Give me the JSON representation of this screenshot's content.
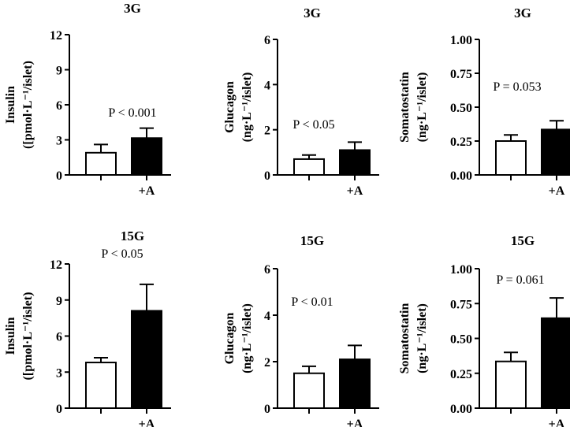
{
  "chart_data": [
    {
      "type": "bar",
      "title": "3G",
      "ylabel_line1": "Insulin",
      "ylabel_line2": "([pmol·L⁻¹/islet)",
      "categories": [
        "",
        "+A"
      ],
      "values": [
        1.9,
        3.15
      ],
      "errors": [
        0.7,
        0.85
      ],
      "ylim": [
        0,
        12
      ],
      "yticks": [
        "0",
        "3",
        "6",
        "9",
        "12"
      ],
      "annotation": "P < 0.001"
    },
    {
      "type": "bar",
      "title": "3G",
      "ylabel_line1": "Glucagon",
      "ylabel_line2": "(ng·L⁻¹/islet)",
      "categories": [
        "",
        "+A"
      ],
      "values": [
        0.7,
        1.1
      ],
      "errors": [
        0.18,
        0.35
      ],
      "ylim": [
        0,
        6
      ],
      "yticks": [
        "0",
        "2",
        "4",
        "6"
      ],
      "annotation": "P < 0.05"
    },
    {
      "type": "bar",
      "title": "3G",
      "ylabel_line1": "Somatostatin",
      "ylabel_line2": "(ng·L⁻¹/islet)",
      "categories": [
        "",
        "+A"
      ],
      "values": [
        0.25,
        0.335
      ],
      "errors": [
        0.045,
        0.065
      ],
      "ylim": [
        0,
        1
      ],
      "yticks": [
        "0.00",
        "0.25",
        "0.50",
        "0.75",
        "1.00"
      ],
      "annotation": "P = 0.053"
    },
    {
      "type": "bar",
      "title": "15G",
      "ylabel_line1": "Insulin",
      "ylabel_line2": "([pmol·L⁻¹/islet)",
      "categories": [
        "",
        "+A"
      ],
      "values": [
        3.8,
        8.1
      ],
      "errors": [
        0.4,
        2.2
      ],
      "ylim": [
        0,
        12
      ],
      "yticks": [
        "0",
        "3",
        "6",
        "9",
        "12"
      ],
      "annotation": "P < 0.05"
    },
    {
      "type": "bar",
      "title": "15G",
      "ylabel_line1": "Glucagon",
      "ylabel_line2": "(ng·L⁻¹/islet)",
      "categories": [
        "",
        "+A"
      ],
      "values": [
        1.5,
        2.1
      ],
      "errors": [
        0.3,
        0.6
      ],
      "ylim": [
        0,
        6
      ],
      "yticks": [
        "0",
        "2",
        "4",
        "6"
      ],
      "annotation": "P < 0.01"
    },
    {
      "type": "bar",
      "title": "15G",
      "ylabel_line1": "Somatostatin",
      "ylabel_line2": "(ng·L⁻¹/islet)",
      "categories": [
        "",
        "+A"
      ],
      "values": [
        0.335,
        0.645
      ],
      "errors": [
        0.065,
        0.145
      ],
      "ylim": [
        0,
        1
      ],
      "yticks": [
        "0.00",
        "0.25",
        "0.50",
        "0.75",
        "1.00"
      ],
      "annotation": "P = 0.061"
    }
  ],
  "colors": {
    "control_bar": "#ffffff",
    "treated_bar": "#000000",
    "axis": "#000000"
  }
}
